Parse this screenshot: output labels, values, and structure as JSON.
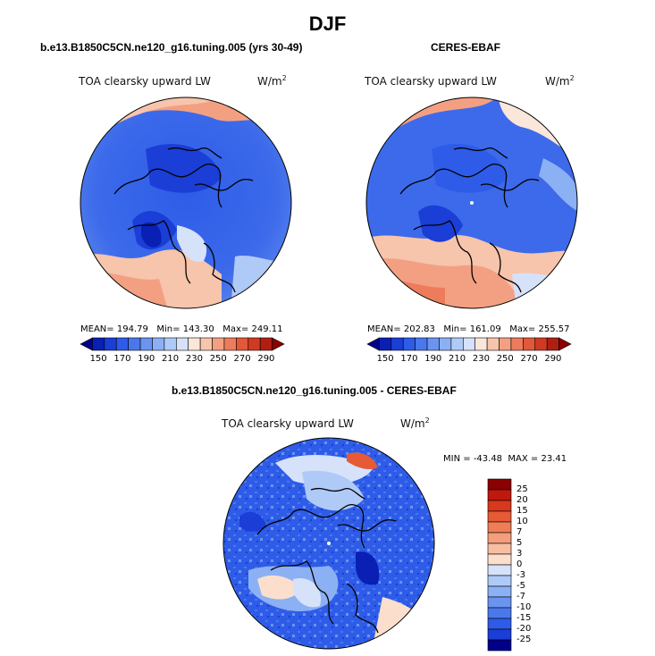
{
  "season": "DJF",
  "panels": [
    {
      "title": "b.e13.B1850C5CN.ne120_g16.tuning.005 (yrs 30-49)",
      "variable": "TOA clearsky upward LW",
      "units_base": "W/m",
      "units_exp": "2",
      "stats": {
        "mean_label": "MEAN=",
        "mean": "194.79",
        "min_label": "Min=",
        "min": "143.30",
        "max_label": "Max=",
        "max": "249.11"
      }
    },
    {
      "title": "CERES-EBAF",
      "variable": "TOA clearsky upward LW",
      "units_base": "W/m",
      "units_exp": "2",
      "stats": {
        "mean_label": "MEAN=",
        "mean": "202.83",
        "min_label": "Min=",
        "min": "161.09",
        "max_label": "Max=",
        "max": "255.57"
      }
    },
    {
      "title": "b.e13.B1850C5CN.ne120_g16.tuning.005 - CERES-EBAF",
      "variable": "TOA clearsky upward LW",
      "units_base": "W/m",
      "units_exp": "2",
      "stats": {
        "min_label": "MIN =",
        "min": "-43.48",
        "max_label": "MAX =",
        "max": "23.41"
      }
    }
  ],
  "colorbar_abs": {
    "tick_labels": [
      "150",
      "170",
      "190",
      "210",
      "230",
      "250",
      "270",
      "290"
    ],
    "colors": [
      "#00008b",
      "#0a1fb4",
      "#1a3ed6",
      "#2e5ce8",
      "#4a78ec",
      "#6a94f0",
      "#8cb0f4",
      "#b0caf7",
      "#d6e2fa",
      "#fbe6da",
      "#f7c4ac",
      "#f3a082",
      "#ec7c5c",
      "#e2583a",
      "#d03a22",
      "#b01e12",
      "#8b0000"
    ]
  },
  "colorbar_diff": {
    "tick_labels": [
      "25",
      "20",
      "15",
      "10",
      "7",
      "5",
      "3",
      "0",
      "-3",
      "-5",
      "-7",
      "-10",
      "-15",
      "-20",
      "-25"
    ],
    "colors": [
      "#8b0000",
      "#c0180c",
      "#d8381e",
      "#e65a36",
      "#ee7e56",
      "#f39e7c",
      "#f7bea2",
      "#fbdfcc",
      "#d6e2fa",
      "#b0caf7",
      "#8cb0f4",
      "#6a94f0",
      "#4a78ec",
      "#2e5ce8",
      "#1a3ed6",
      "#00008b"
    ]
  }
}
